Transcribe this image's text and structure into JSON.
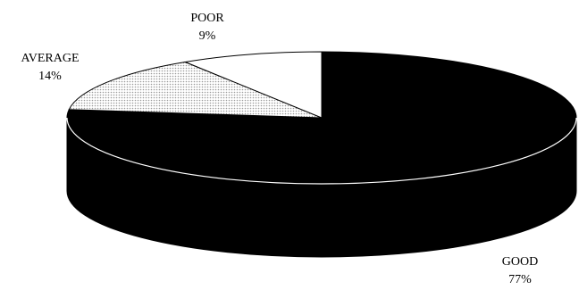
{
  "chart_data": {
    "type": "pie",
    "style": "3d",
    "title": "",
    "categories": [
      "GOOD",
      "AVERAGE",
      "POOR"
    ],
    "values": [
      77,
      14,
      9
    ],
    "value_labels": [
      "77%",
      "14%",
      "9%"
    ],
    "colors": {
      "GOOD": "#000000",
      "AVERAGE": "#d8d8d8",
      "POOR": "#ffffff"
    },
    "pattern": {
      "AVERAGE": "dotted"
    },
    "legend": "none",
    "labels_outside": true
  }
}
